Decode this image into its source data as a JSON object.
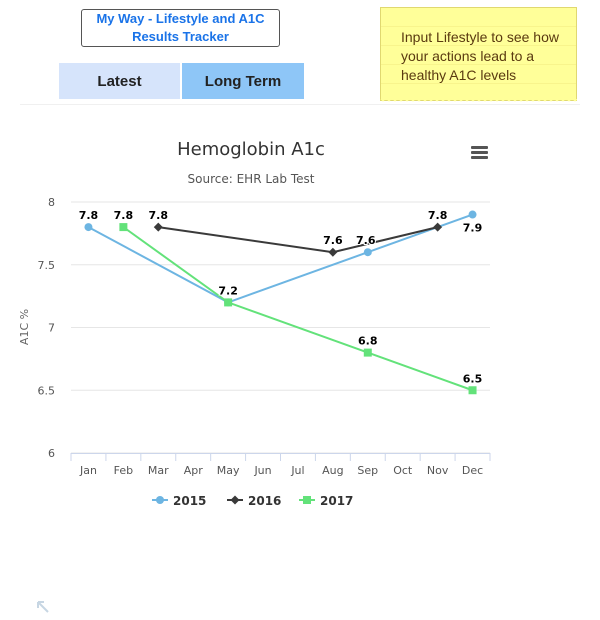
{
  "header": {
    "title_line1": "My Way - Lifestyle and A1C",
    "title_line2": "Results Tracker"
  },
  "tabs": [
    {
      "label": "Latest"
    },
    {
      "label": "Long Term"
    }
  ],
  "note": {
    "text": "Input Lifestyle to see how your actions lead to a healthy A1C levels"
  },
  "colors": {
    "series_2015": "#6db5e2",
    "series_2016": "#3a3a3a",
    "series_2017": "#63e27a"
  },
  "chart_data": {
    "type": "line",
    "title": "Hemoglobin A1c",
    "subtitle": "Source: EHR Lab Test",
    "ylabel": "A1C %",
    "xlabel": "",
    "categories": [
      "Jan",
      "Feb",
      "Mar",
      "Apr",
      "May",
      "Jun",
      "Jul",
      "Aug",
      "Sep",
      "Oct",
      "Nov",
      "Dec"
    ],
    "ylim": [
      6,
      8
    ],
    "yticks": [
      6,
      6.5,
      7,
      7.5,
      8
    ],
    "grid": true,
    "legend_position": "bottom-center",
    "series": [
      {
        "name": "2015",
        "marker": "circle",
        "points": [
          {
            "x": "Jan",
            "y": 7.8
          },
          {
            "x": "May",
            "y": 7.2
          },
          {
            "x": "Sep",
            "y": 7.6
          },
          {
            "x": "Dec",
            "y": 7.9
          }
        ],
        "labels": [
          {
            "x": "Jan",
            "text": "7.8"
          },
          {
            "x": "Sep",
            "text": "7.6"
          },
          {
            "x": "Dec",
            "text": "7.9"
          }
        ]
      },
      {
        "name": "2016",
        "marker": "diamond",
        "points": [
          {
            "x": "Mar",
            "y": 7.8
          },
          {
            "x": "Aug",
            "y": 7.6
          },
          {
            "x": "Nov",
            "y": 7.8
          }
        ],
        "labels": [
          {
            "x": "Mar",
            "text": "7.8"
          },
          {
            "x": "Aug",
            "text": "7.6"
          },
          {
            "x": "Nov",
            "text": "7.8"
          }
        ]
      },
      {
        "name": "2017",
        "marker": "square",
        "points": [
          {
            "x": "Feb",
            "y": 7.8
          },
          {
            "x": "May",
            "y": 7.2
          },
          {
            "x": "Sep",
            "y": 6.8
          },
          {
            "x": "Dec",
            "y": 6.5
          }
        ],
        "labels": [
          {
            "x": "Feb",
            "text": "7.8"
          },
          {
            "x": "May",
            "text": "7.2"
          },
          {
            "x": "Sep",
            "text": "6.8"
          },
          {
            "x": "Dec",
            "text": "6.5"
          }
        ]
      }
    ]
  }
}
